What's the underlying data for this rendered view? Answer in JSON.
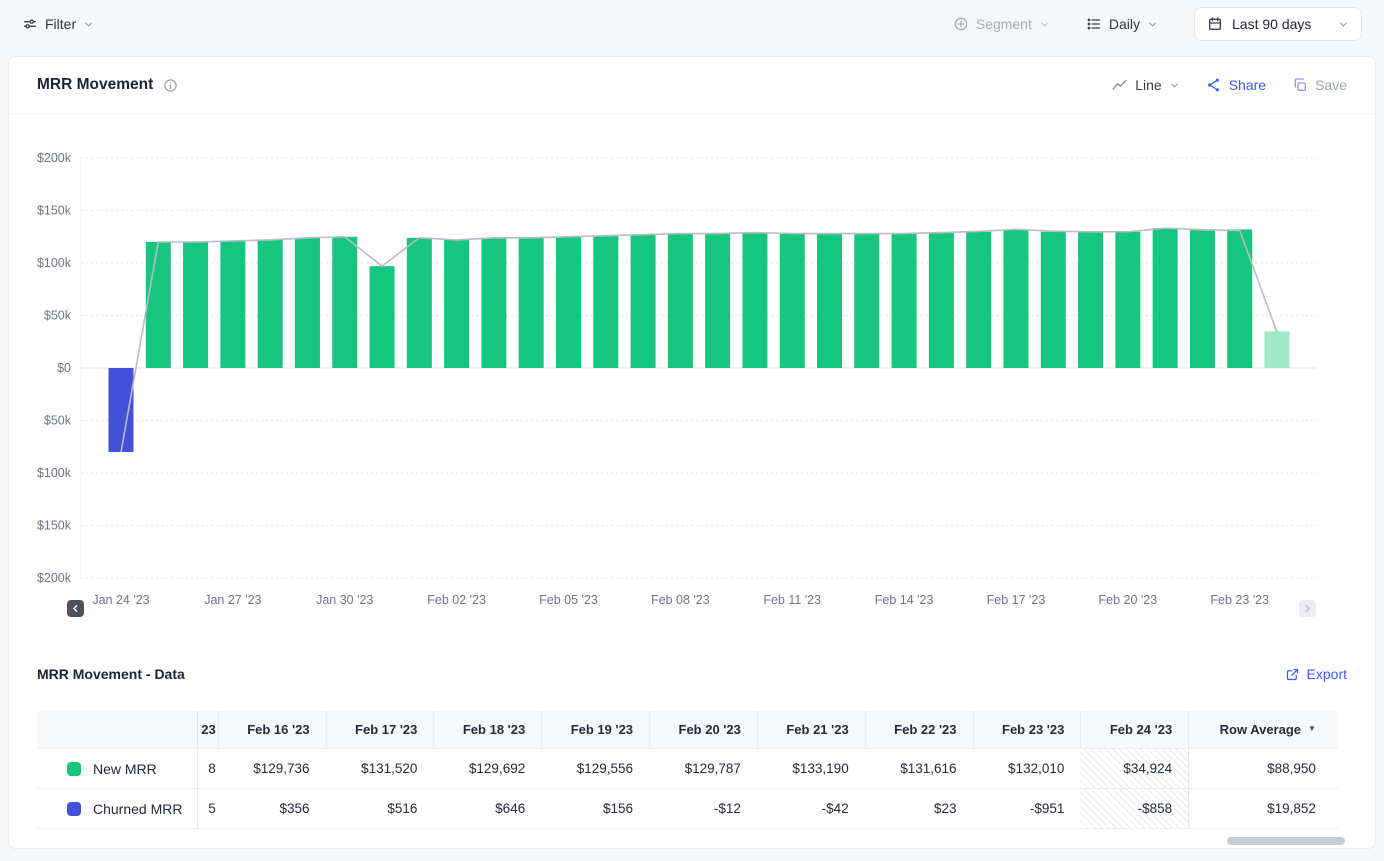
{
  "colors": {
    "accent_blue": "#3b5bf6",
    "new_mrr_green": "#17c67e",
    "partial_green": "#9fe9c7",
    "churned_blue": "#4350d8",
    "trend_line_gray": "#b7bcc7"
  },
  "icons": {
    "filter": "sliders-icon",
    "segment": "circle-plus-icon",
    "daily": "list-rows-icon",
    "date_range": "calendar-icon",
    "chart_type": "line-zigzag-icon",
    "share": "share-nodes-icon",
    "save": "copy-icon",
    "info": "info-circle-icon",
    "export": "external-link-icon",
    "sort": "triangle-down-icon"
  },
  "toolbar": {
    "filter": "Filter",
    "segment": "Segment",
    "granularity": "Daily",
    "date_range": "Last 90 days"
  },
  "card": {
    "title": "MRR Movement",
    "chart_type": "Line",
    "share": "Share",
    "save": "Save"
  },
  "chart_data": {
    "type": "bar",
    "title": "MRR Movement",
    "unit": "USD",
    "granularity": "daily",
    "ylim": [
      -200000,
      200000
    ],
    "grid": "dotted-horizontal",
    "y_ticks": {
      "labels": [
        "$200k",
        "$150k",
        "$100k",
        "$50k",
        "$0",
        "$50k",
        "$100k",
        "$150k",
        "$200k"
      ],
      "values": [
        200000,
        150000,
        100000,
        50000,
        0,
        -50000,
        -100000,
        -150000,
        -200000
      ]
    },
    "x_ticks": [
      "Jan 24 '23",
      "Jan 27 '23",
      "Jan 30 '23",
      "Feb 02 '23",
      "Feb 05 '23",
      "Feb 08 '23",
      "Feb 11 '23",
      "Feb 14 '23",
      "Feb 17 '23",
      "Feb 20 '23",
      "Feb 23 '23"
    ],
    "x_tick_step": 3,
    "dates": [
      "Jan 24 '23",
      "Jan 25 '23",
      "Jan 26 '23",
      "Jan 27 '23",
      "Jan 28 '23",
      "Jan 29 '23",
      "Jan 30 '23",
      "Jan 31 '23",
      "Feb 01 '23",
      "Feb 02 '23",
      "Feb 03 '23",
      "Feb 04 '23",
      "Feb 05 '23",
      "Feb 06 '23",
      "Feb 07 '23",
      "Feb 08 '23",
      "Feb 09 '23",
      "Feb 10 '23",
      "Feb 11 '23",
      "Feb 12 '23",
      "Feb 13 '23",
      "Feb 14 '23",
      "Feb 15 '23",
      "Feb 16 '23",
      "Feb 17 '23",
      "Feb 18 '23",
      "Feb 19 '23",
      "Feb 20 '23",
      "Feb 21 '23",
      "Feb 22 '23",
      "Feb 23 '23",
      "Feb 24 '23"
    ],
    "series": [
      {
        "name": "New MRR",
        "values": [
          0,
          120000,
          120000,
          121000,
          122000,
          124000,
          125000,
          97000,
          124000,
          122000,
          124000,
          124000,
          125000,
          126000,
          127000,
          128000,
          128000,
          129000,
          128000,
          128000,
          128000,
          128000,
          129000,
          129736,
          131520,
          129692,
          129556,
          129787,
          133190,
          131616,
          132010,
          34924
        ]
      },
      {
        "name": "Churned MRR",
        "values": [
          -80000,
          0,
          0,
          0,
          0,
          0,
          0,
          0,
          0,
          0,
          0,
          0,
          0,
          0,
          0,
          0,
          0,
          0,
          0,
          0,
          0,
          0,
          0,
          356,
          516,
          646,
          156,
          -12,
          -42,
          23,
          -951,
          -858
        ]
      }
    ],
    "line_overlay": "net movement (sum of series)",
    "partial_last_bar": true,
    "bar_colors": {
      "new": "#17c67e",
      "new_partial": "#9fe9c7",
      "churned": "#4350d8"
    },
    "line_color": "#b7bcc7",
    "legend_position": "none (legend shown in data table)"
  },
  "table": {
    "title": "MRR Movement - Data",
    "export_label": "Export",
    "row_average_label": "Row Average",
    "clipped_column": {
      "header": "23",
      "values": [
        "8",
        "5"
      ]
    },
    "columns": [
      "Feb 16 '23",
      "Feb 17 '23",
      "Feb 18 '23",
      "Feb 19 '23",
      "Feb 20 '23",
      "Feb 21 '23",
      "Feb 22 '23",
      "Feb 23 '23",
      "Feb 24 '23"
    ],
    "rows": [
      {
        "label": "New MRR",
        "color": "#17c67e",
        "values": [
          "$129,736",
          "$131,520",
          "$129,692",
          "$129,556",
          "$129,787",
          "$133,190",
          "$131,616",
          "$132,010",
          "$34,924"
        ],
        "row_average": "$88,950"
      },
      {
        "label": "Churned MRR",
        "color": "#4350d8",
        "values": [
          "$356",
          "$516",
          "$646",
          "$156",
          "-$12",
          "-$42",
          "$23",
          "-$951",
          "-$858"
        ],
        "row_average": "$19,852"
      }
    ],
    "hatched_column": "Feb 24 '23"
  }
}
